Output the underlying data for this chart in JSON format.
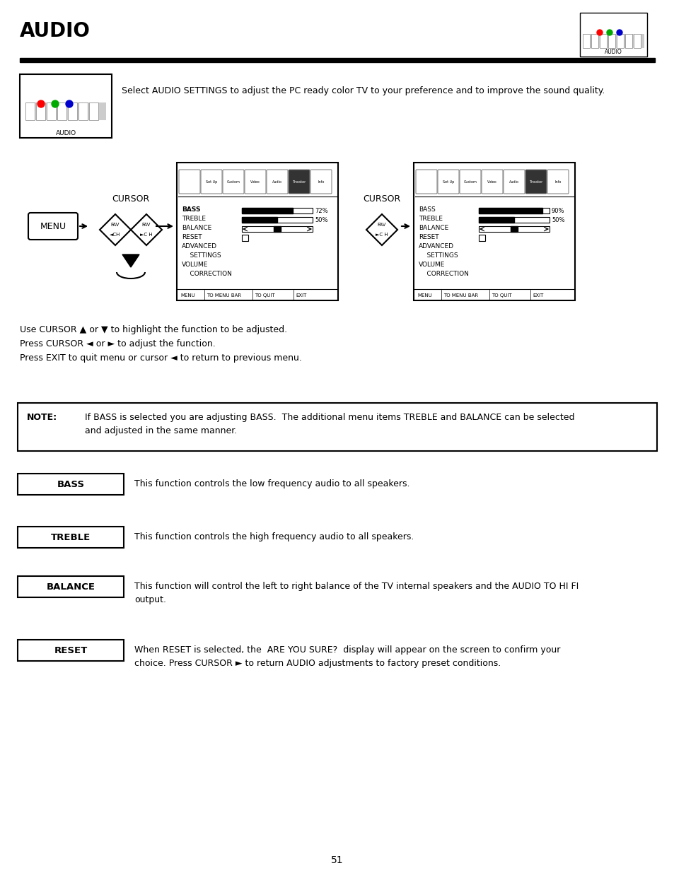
{
  "title": "AUDIO",
  "page_number": "51",
  "bg_color": "#ffffff",
  "intro_text": "Select AUDIO SETTINGS to adjust the PC ready color TV to your preference and to improve the sound quality.",
  "cursor_instructions": [
    "Use CURSOR ▲ or ▼ to highlight the function to be adjusted.",
    "Press CURSOR ◄ or ► to adjust the function.",
    "Press EXIT to quit menu or cursor ◄ to return to previous menu."
  ],
  "note_label": "NOTE:",
  "note_text": "If BASS is selected you are adjusting BASS.  The additional menu items TREBLE and BALANCE can be selected\nand adjusted in the same manner.",
  "items": [
    {
      "label": "BASS",
      "description": "This function controls the low frequency audio to all speakers."
    },
    {
      "label": "TREBLE",
      "description": "This function controls the high frequency audio to all speakers."
    },
    {
      "label": "BALANCE",
      "description": "This function will control the left to right balance of the TV internal speakers and the AUDIO TO HI FI\noutput."
    },
    {
      "label": "RESET",
      "description": "When RESET is selected, the  ARE YOU SURE?  display will appear on the screen to confirm your\nchoice. Press CURSOR ► to return AUDIO adjustments to factory preset conditions."
    }
  ],
  "bass_pct_left": "72%",
  "treble_pct_left": "50%",
  "bass_pct_right": "90%",
  "treble_pct_right": "50%",
  "nav_bar": [
    "MENU",
    "TO MENU BAR",
    "TO QUIT",
    "EXIT"
  ]
}
